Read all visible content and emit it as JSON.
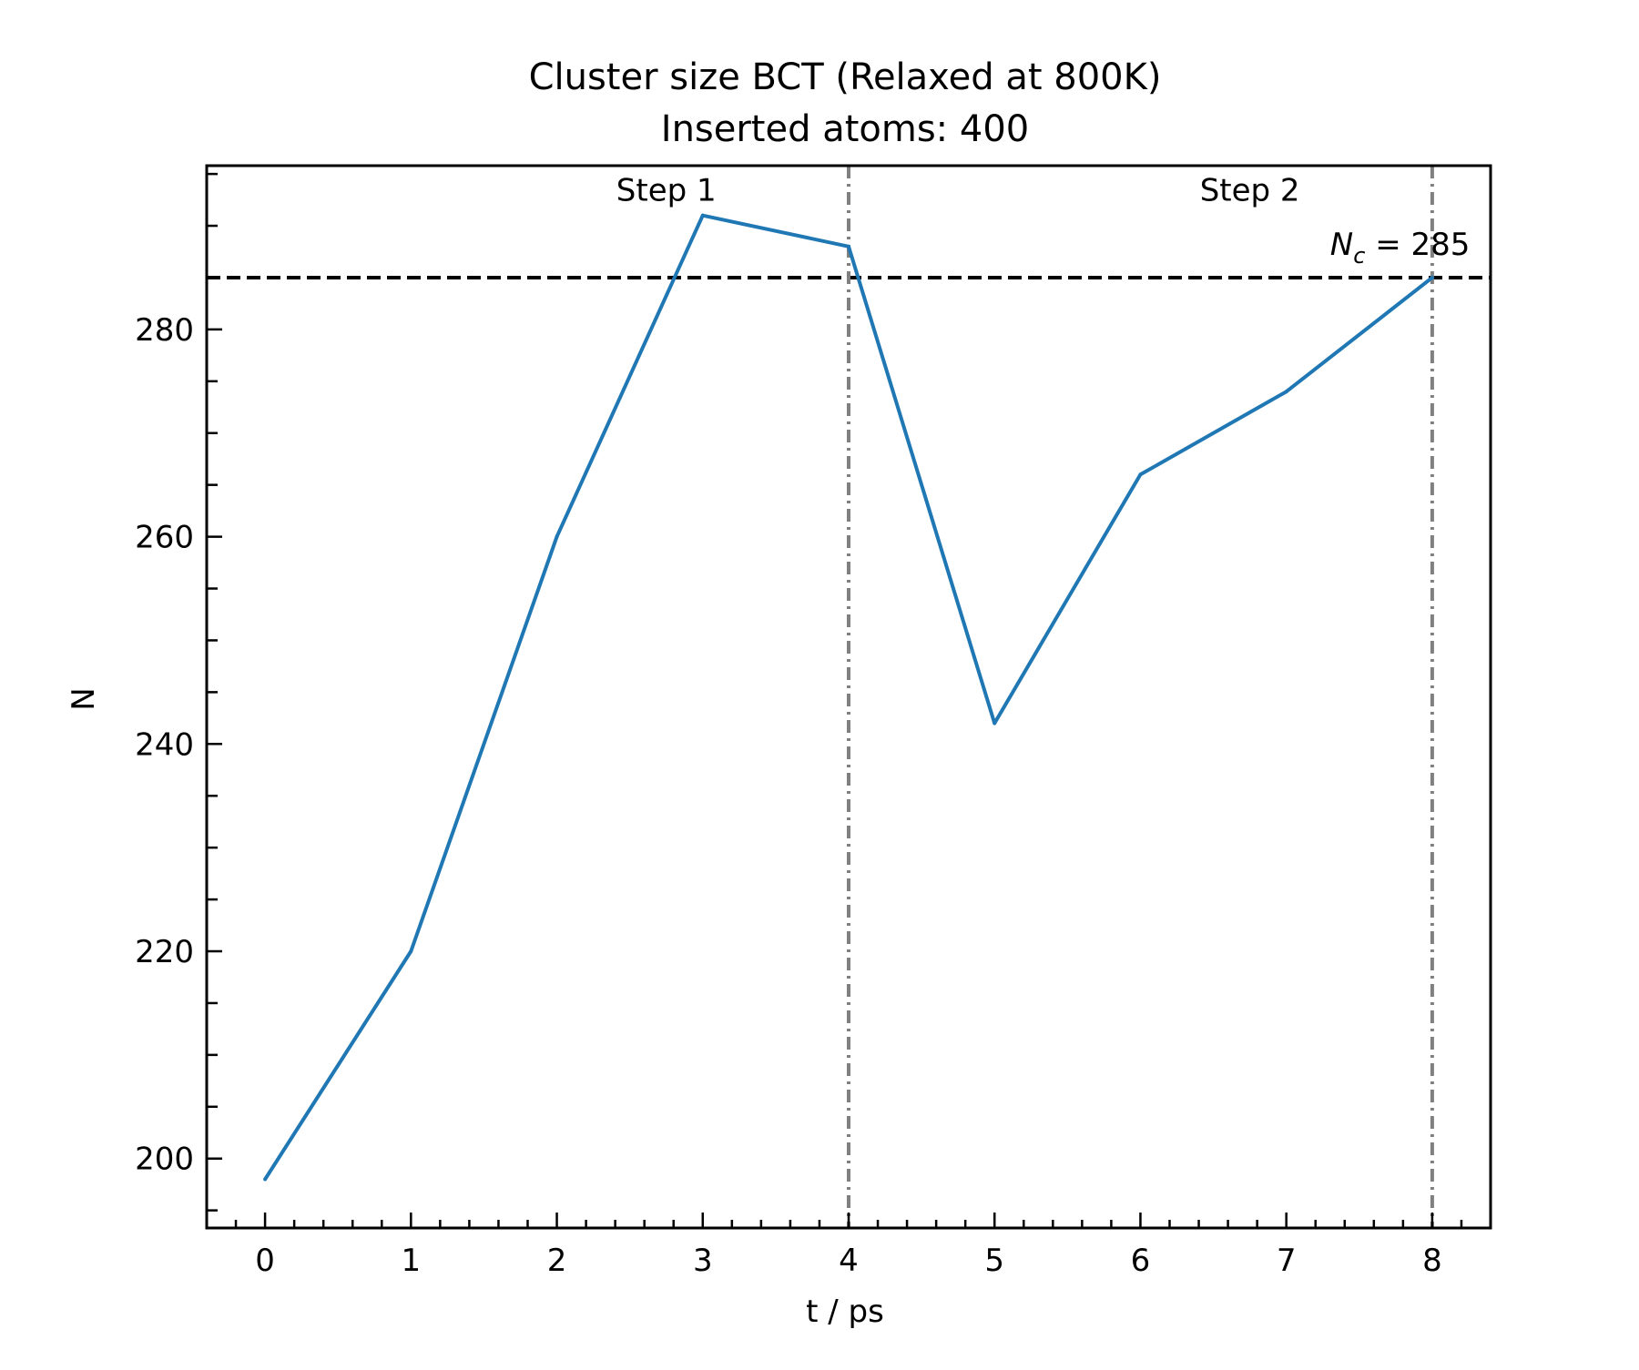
{
  "chart_data": {
    "type": "line",
    "title": "Cluster size BCT (Relaxed at 800K)",
    "subtitle": "Inserted atoms: 400",
    "xlabel": "t / ps",
    "ylabel": "N",
    "xlim": [
      -0.4,
      8.4
    ],
    "ylim": [
      193.3,
      295.8
    ],
    "x_ticks": [
      0,
      1,
      2,
      3,
      4,
      5,
      6,
      7,
      8
    ],
    "y_ticks": [
      200,
      220,
      240,
      260,
      280
    ],
    "x_minor_step": 0.2,
    "y_minor_step": 5,
    "grid": false,
    "series": [
      {
        "color": "#1f77b4",
        "x": [
          0,
          1,
          2,
          3,
          4,
          5,
          6,
          7,
          8
        ],
        "y": [
          198,
          220,
          260,
          291,
          288,
          242,
          266,
          274,
          285
        ]
      }
    ],
    "reference_lines": {
      "horizontal": {
        "y": 285,
        "style": "dashed",
        "color": "#000000"
      },
      "vertical": [
        {
          "x": 4,
          "style": "dashdot",
          "color": "#808080"
        },
        {
          "x": 8,
          "style": "dashdot",
          "color": "#808080"
        }
      ]
    },
    "annotations": [
      {
        "id": "step1",
        "text": "Step 1",
        "x": 2.75,
        "y": 292.4
      },
      {
        "id": "step2",
        "text": "Step 2",
        "x": 6.75,
        "y": 292.4
      },
      {
        "id": "nc",
        "symbol": "N",
        "subscript": "c",
        "text": " = 285",
        "x": 7.3,
        "y": 287.2
      }
    ]
  }
}
